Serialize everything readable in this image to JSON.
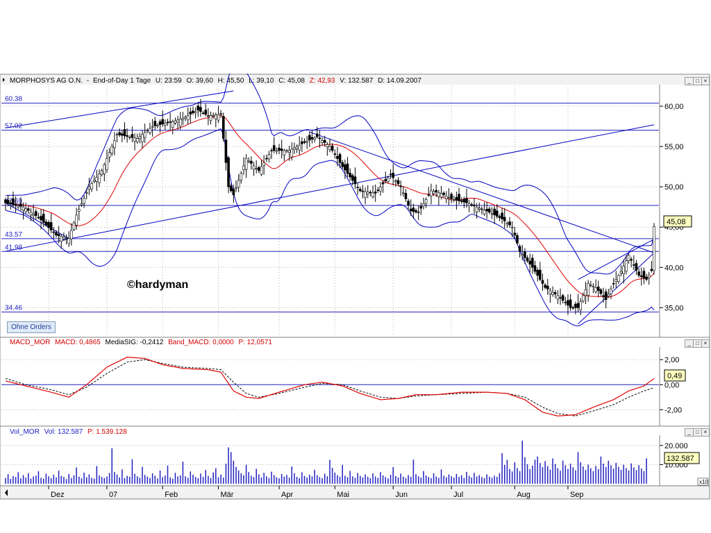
{
  "price_panel": {
    "header": {
      "symbol": "MORPHOSYS AG O.N.",
      "period": "End-of-Day 1 Tage",
      "time": "U: 23:59",
      "open": "O: 39,60",
      "high": "H: 45,50",
      "low": "L: 39,10",
      "close": "C: 45,08",
      "z": "Z: 42,93",
      "volume": "V: 132.587",
      "date": "D: 14.09.2007"
    },
    "watermark": "©hardyman",
    "button_label": "Ohne Orders",
    "last_price_label": "45,08"
  },
  "macd_panel": {
    "header": {
      "name": "MACD_MOR",
      "macd": "MACD: 0,4865",
      "signal": "MediaSIG: -0,2412",
      "band": "Band_MACD: 0,0000",
      "p": "P: 12,0571"
    },
    "last_value_label": "0,49"
  },
  "volume_panel": {
    "header": {
      "name": "Vol_MOR",
      "vol": "Vol: 132.587",
      "p": "P: 1.539.128"
    },
    "last_value_label": "132.587",
    "scale_factor": "x10"
  },
  "window_buttons": [
    "_",
    "□",
    "×"
  ],
  "colors": {
    "candle_up": "#ffffff",
    "candle_down": "#000000",
    "ma": "#e00000",
    "bollinger": "#0000c0",
    "horizontal_lines": "#2020c0",
    "macd_line": "#e00000",
    "signal_line": "#000000",
    "volume_bars": "#2020c0",
    "label_bg": "#ffffc0"
  },
  "chart_data": [
    {
      "type": "candlestick",
      "title": "MORPHOSYS AG O.N.",
      "x_tick_labels": [
        "Dez",
        "07",
        "Feb",
        "Mär",
        "Apr",
        "Mai",
        "Jun",
        "Jul",
        "Aug",
        "Sep"
      ],
      "y_tick_labels": [
        "35,00",
        "40,00",
        "45,00",
        "50,00",
        "55,00",
        "60,00"
      ],
      "ylim": [
        31.5,
        62.5
      ],
      "horizontal_levels": [
        {
          "label": "60.38",
          "value": 60.38
        },
        {
          "label": "57.02",
          "value": 57.02
        },
        {
          "label": "47.69",
          "value": 47.69
        },
        {
          "label": "43.57",
          "value": 43.57
        },
        {
          "label": "41.98",
          "value": 41.98
        },
        {
          "label": "34.46",
          "value": 34.46
        }
      ],
      "close_keypoints": [
        [
          0,
          48.0
        ],
        [
          7,
          47.5
        ],
        [
          13,
          46.2
        ],
        [
          20,
          44.0
        ],
        [
          25,
          43.6
        ],
        [
          28,
          46.5
        ],
        [
          33,
          50.0
        ],
        [
          38,
          52.0
        ],
        [
          44,
          56.5
        ],
        [
          52,
          56.0
        ],
        [
          58,
          57.5
        ],
        [
          65,
          58.0
        ],
        [
          70,
          58.5
        ],
        [
          76,
          59.5
        ],
        [
          80,
          58.8
        ],
        [
          85,
          59.0
        ],
        [
          88,
          50.0
        ],
        [
          90,
          49.0
        ],
        [
          95,
          53.5
        ],
        [
          100,
          52.0
        ],
        [
          105,
          54.5
        ],
        [
          112,
          54.5
        ],
        [
          118,
          55.5
        ],
        [
          123,
          56.2
        ],
        [
          128,
          55.0
        ],
        [
          133,
          52.5
        ],
        [
          140,
          49.5
        ],
        [
          146,
          49.2
        ],
        [
          152,
          51.5
        ],
        [
          156,
          50.0
        ],
        [
          160,
          47.0
        ],
        [
          163,
          46.8
        ],
        [
          168,
          49.5
        ],
        [
          172,
          49.2
        ],
        [
          176,
          48.5
        ],
        [
          182,
          48.0
        ],
        [
          186,
          47.5
        ],
        [
          190,
          47.0
        ],
        [
          196,
          46.0
        ],
        [
          200,
          45.0
        ],
        [
          203,
          42.0
        ],
        [
          208,
          40.0
        ],
        [
          213,
          37.5
        ],
        [
          218,
          36.5
        ],
        [
          223,
          35.0
        ],
        [
          226,
          35.0
        ],
        [
          230,
          38.0
        ],
        [
          233,
          37.5
        ],
        [
          237,
          36.0
        ],
        [
          240,
          38.0
        ],
        [
          243,
          39.5
        ],
        [
          246,
          41.5
        ],
        [
          250,
          39.0
        ],
        [
          253,
          38.5
        ],
        [
          255,
          39.6
        ],
        [
          256,
          45.08
        ]
      ],
      "last": {
        "open": 39.6,
        "high": 45.5,
        "low": 39.1,
        "close": 45.08,
        "volume": 132587,
        "date": "14.09.2007"
      }
    },
    {
      "type": "line",
      "name": "MACD_MOR",
      "y_tick_labels": [
        "2,00",
        "0,00",
        "-2,00"
      ],
      "ylim": [
        -3.2,
        2.9
      ],
      "series": [
        {
          "name": "MACD",
          "keypoints": [
            [
              0,
              0.3
            ],
            [
              8,
              -0.1
            ],
            [
              18,
              -0.6
            ],
            [
              25,
              -1.0
            ],
            [
              32,
              0.0
            ],
            [
              40,
              1.4
            ],
            [
              48,
              2.2
            ],
            [
              55,
              2.1
            ],
            [
              62,
              1.6
            ],
            [
              70,
              1.3
            ],
            [
              80,
              1.2
            ],
            [
              85,
              1.0
            ],
            [
              90,
              -0.5
            ],
            [
              95,
              -1.0
            ],
            [
              100,
              -1.1
            ],
            [
              108,
              -0.6
            ],
            [
              118,
              0.0
            ],
            [
              125,
              0.2
            ],
            [
              133,
              -0.1
            ],
            [
              140,
              -0.7
            ],
            [
              148,
              -1.2
            ],
            [
              155,
              -1.1
            ],
            [
              162,
              -0.8
            ],
            [
              170,
              -0.8
            ],
            [
              180,
              -0.6
            ],
            [
              190,
              -0.6
            ],
            [
              198,
              -0.7
            ],
            [
              205,
              -1.2
            ],
            [
              212,
              -2.2
            ],
            [
              218,
              -2.5
            ],
            [
              225,
              -2.4
            ],
            [
              232,
              -1.8
            ],
            [
              240,
              -1.2
            ],
            [
              246,
              -0.5
            ],
            [
              252,
              -0.1
            ],
            [
              256,
              0.4865
            ]
          ]
        },
        {
          "name": "Signal",
          "keypoints": [
            [
              0,
              0.5
            ],
            [
              8,
              0.0
            ],
            [
              18,
              -0.4
            ],
            [
              25,
              -0.8
            ],
            [
              32,
              -0.2
            ],
            [
              40,
              0.9
            ],
            [
              48,
              1.8
            ],
            [
              55,
              2.0
            ],
            [
              62,
              1.7
            ],
            [
              70,
              1.4
            ],
            [
              80,
              1.3
            ],
            [
              85,
              1.2
            ],
            [
              90,
              0.2
            ],
            [
              95,
              -0.7
            ],
            [
              100,
              -1.0
            ],
            [
              108,
              -0.7
            ],
            [
              118,
              -0.2
            ],
            [
              125,
              0.1
            ],
            [
              133,
              0.0
            ],
            [
              140,
              -0.5
            ],
            [
              148,
              -1.0
            ],
            [
              155,
              -1.1
            ],
            [
              162,
              -0.9
            ],
            [
              170,
              -0.8
            ],
            [
              180,
              -0.7
            ],
            [
              190,
              -0.6
            ],
            [
              198,
              -0.7
            ],
            [
              205,
              -1.0
            ],
            [
              212,
              -1.8
            ],
            [
              218,
              -2.3
            ],
            [
              225,
              -2.5
            ],
            [
              232,
              -2.1
            ],
            [
              240,
              -1.6
            ],
            [
              246,
              -1.0
            ],
            [
              252,
              -0.5
            ],
            [
              256,
              -0.2412
            ]
          ]
        }
      ]
    },
    {
      "type": "bar",
      "name": "Vol_MOR",
      "y_tick_labels": [
        "20.000",
        "10.000"
      ],
      "ylim": [
        0,
        25000
      ],
      "values_x10": [
        3000,
        5000,
        2500,
        4000,
        3500,
        6000,
        2800,
        4500,
        3200,
        5500,
        2700,
        3800,
        4200,
        6500,
        3100,
        2600,
        5200,
        3900,
        2900,
        4700,
        3300,
        6800,
        4100,
        3600,
        2400,
        5100,
        3000,
        4400,
        8500,
        3700,
        2800,
        5800,
        3400,
        4900,
        3100,
        2700,
        9200,
        4300,
        3500,
        3000,
        3800,
        5600,
        18500,
        6200,
        4800,
        3300,
        7500,
        2900,
        4100,
        3600,
        12800,
        5200,
        3900,
        3100,
        8800,
        4600,
        3700,
        3000,
        5400,
        4200,
        2800,
        6900,
        3500,
        4300,
        9500,
        3300,
        2600,
        5700,
        3800,
        4400,
        11500,
        3900,
        3100,
        6400,
        4700,
        3500,
        2900,
        5300,
        3600,
        7200,
        4100,
        3000,
        5900,
        8100,
        3400,
        4800,
        3200,
        10500,
        19000,
        16500,
        12000,
        8800,
        6900,
        5500,
        4400,
        9900,
        6100,
        4200,
        3500,
        7800,
        4900,
        3300,
        5700,
        3900,
        3000,
        6300,
        4500,
        3400,
        2800,
        5100,
        3700,
        4600,
        3200,
        9000,
        5500,
        3600,
        2900,
        6000,
        4100,
        3300,
        4700,
        3800,
        7300,
        4400,
        3500,
        2800,
        5200,
        3900,
        12500,
        8300,
        5800,
        4500,
        3600,
        9800,
        4200,
        3400,
        6700,
        3800,
        3100,
        5600,
        4100,
        3300,
        4900,
        3600,
        2900,
        5400,
        3800,
        3100,
        6100,
        4400,
        3500,
        2800,
        4700,
        8700,
        4000,
        3300,
        5300,
        3700,
        3000,
        4500,
        3600,
        12600,
        5000,
        3900,
        3200,
        6600,
        4300,
        3500,
        2900,
        5500,
        3800,
        3100,
        7500,
        4200,
        3400,
        4800,
        3900,
        3200,
        5100,
        3600,
        4400,
        3000,
        6200,
        4100,
        3300,
        5700,
        3800,
        4500,
        3500,
        2900,
        4900,
        3700,
        3100,
        4200,
        3600,
        5500,
        16000,
        9800,
        12500,
        7700,
        6400,
        11200,
        8200,
        6600,
        22500,
        13800,
        10200,
        7600,
        9400,
        12600,
        14200,
        10800,
        8700,
        11800,
        9200,
        7400,
        13200,
        10300,
        8100,
        6800,
        12100,
        9600,
        7700,
        10500,
        8600,
        7000,
        16500,
        11300,
        9000,
        7200,
        10000,
        8100,
        6600,
        9300,
        7600,
        14200,
        10500,
        8700,
        12000,
        9600,
        7900,
        10900,
        8800,
        7300,
        9900,
        8200,
        6900,
        10600,
        8500,
        7100,
        9700,
        8000,
        6600,
        13260
      ]
    }
  ]
}
